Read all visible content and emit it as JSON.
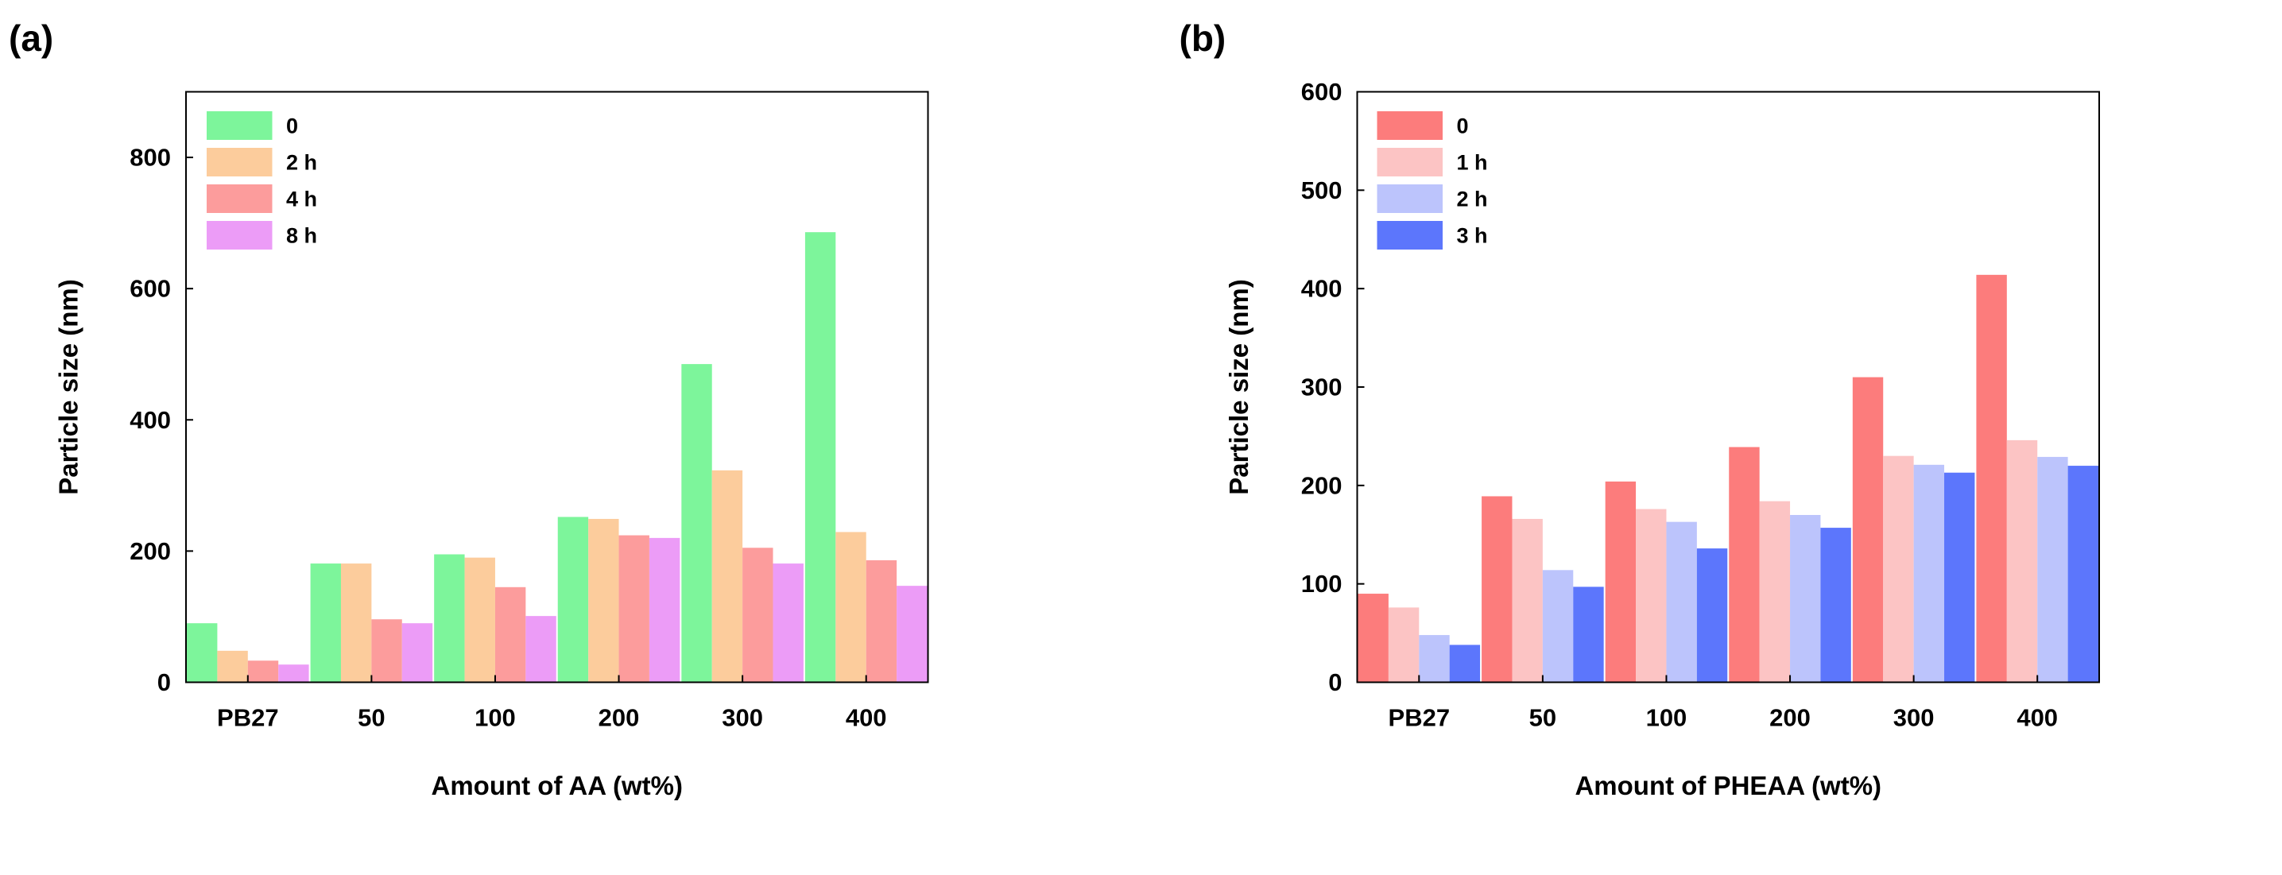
{
  "chart_data": [
    {
      "panel_label": "(a)",
      "type": "bar",
      "xlabel": "Amount of AA (wt%)",
      "ylabel": "Particle size (nm)",
      "categories": [
        "PB27",
        "50",
        "100",
        "200",
        "300",
        "400"
      ],
      "ylim": [
        0,
        900
      ],
      "yticks": [
        0,
        200,
        400,
        600,
        800
      ],
      "legend_position": "top-left",
      "series": [
        {
          "name": "0",
          "color": "#7df59b",
          "values": [
            90,
            181,
            195,
            252,
            485,
            686
          ]
        },
        {
          "name": "2 h",
          "color": "#fccc9c",
          "values": [
            48,
            181,
            190,
            249,
            323,
            229
          ]
        },
        {
          "name": "4 h",
          "color": "#fc9c9c",
          "values": [
            33,
            96,
            145,
            224,
            205,
            186
          ]
        },
        {
          "name": "8 h",
          "color": "#ec9cf7",
          "values": [
            27,
            90,
            101,
            220,
            181,
            147
          ]
        }
      ]
    },
    {
      "panel_label": "(b)",
      "type": "bar",
      "xlabel": "Amount of PHEAA (wt%)",
      "ylabel": "Particle size (nm)",
      "categories": [
        "PB27",
        "50",
        "100",
        "200",
        "300",
        "400"
      ],
      "ylim": [
        0,
        600
      ],
      "yticks": [
        0,
        100,
        200,
        300,
        400,
        500,
        600
      ],
      "legend_position": "top-left",
      "series": [
        {
          "name": "0",
          "color": "#fc7c7c",
          "values": [
            90,
            189,
            204,
            239,
            310,
            414
          ]
        },
        {
          "name": "1 h",
          "color": "#fcc4c4",
          "values": [
            76,
            166,
            176,
            184,
            230,
            246
          ]
        },
        {
          "name": "2 h",
          "color": "#bcc4fc",
          "values": [
            48,
            114,
            163,
            170,
            221,
            229
          ]
        },
        {
          "name": "3 h",
          "color": "#5c76fc",
          "values": [
            38,
            97,
            136,
            157,
            213,
            220
          ]
        }
      ]
    }
  ]
}
